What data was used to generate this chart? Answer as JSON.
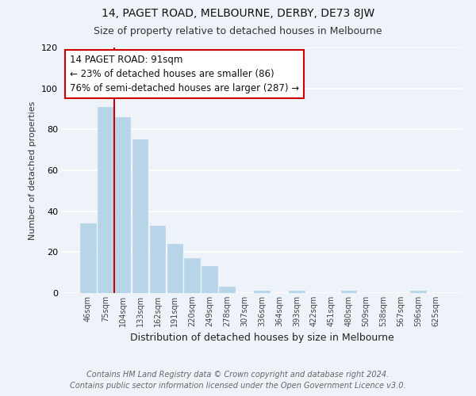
{
  "title": "14, PAGET ROAD, MELBOURNE, DERBY, DE73 8JW",
  "subtitle": "Size of property relative to detached houses in Melbourne",
  "xlabel": "Distribution of detached houses by size in Melbourne",
  "ylabel": "Number of detached properties",
  "categories": [
    "46sqm",
    "75sqm",
    "104sqm",
    "133sqm",
    "162sqm",
    "191sqm",
    "220sqm",
    "249sqm",
    "278sqm",
    "307sqm",
    "336sqm",
    "364sqm",
    "393sqm",
    "422sqm",
    "451sqm",
    "480sqm",
    "509sqm",
    "538sqm",
    "567sqm",
    "596sqm",
    "625sqm"
  ],
  "values": [
    34,
    91,
    86,
    75,
    33,
    24,
    17,
    13,
    3,
    0,
    1,
    0,
    1,
    0,
    0,
    1,
    0,
    0,
    0,
    1,
    0
  ],
  "bar_color": "#b8d4e8",
  "bar_edgecolor": "#b8d4e8",
  "vline_x": 1.5,
  "vline_color": "#cc0000",
  "annotation_text": "14 PAGET ROAD: 91sqm\n← 23% of detached houses are smaller (86)\n76% of semi-detached houses are larger (287) →",
  "annotation_box_edgecolor": "#cc0000",
  "ylim": [
    0,
    120
  ],
  "yticks": [
    0,
    20,
    40,
    60,
    80,
    100,
    120
  ],
  "footer_line1": "Contains HM Land Registry data © Crown copyright and database right 2024.",
  "footer_line2": "Contains public sector information licensed under the Open Government Licence v3.0.",
  "background_color": "#eef3f9",
  "grid_color": "#ffffff",
  "title_fontsize": 10,
  "subtitle_fontsize": 9,
  "annotation_fontsize": 8.5,
  "footer_fontsize": 7,
  "ylabel_fontsize": 8,
  "xlabel_fontsize": 9
}
